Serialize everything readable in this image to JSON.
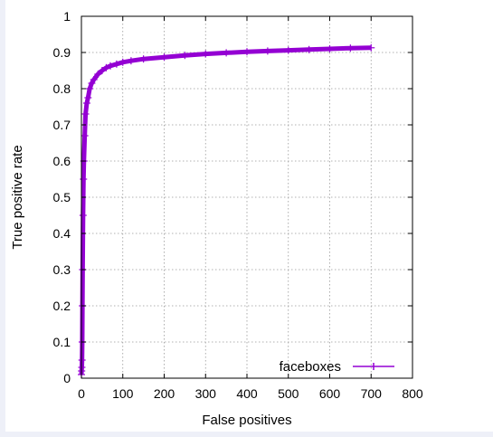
{
  "chart_data": {
    "type": "line",
    "xlabel": "False positives",
    "ylabel": "True positive rate",
    "xlim": [
      0,
      800
    ],
    "ylim": [
      0,
      1
    ],
    "x_ticks": [
      "0",
      "100",
      "200",
      "300",
      "400",
      "500",
      "600",
      "700",
      "800"
    ],
    "y_ticks": [
      "0",
      "0.1",
      "0.2",
      "0.3",
      "0.4",
      "0.5",
      "0.6",
      "0.7",
      "0.8",
      "0.9",
      "1"
    ],
    "grid": true,
    "legend_position": "bottom-right",
    "series": [
      {
        "name": "faceboxes",
        "color": "#9400d3",
        "x": [
          0,
          0.5,
          1,
          1.5,
          2,
          2.5,
          3,
          4,
          5,
          6,
          8,
          10,
          13,
          16,
          20,
          25,
          30,
          40,
          50,
          60,
          70,
          85,
          100,
          120,
          150,
          200,
          250,
          300,
          350,
          400,
          450,
          500,
          550,
          600,
          650,
          700
        ],
        "y": [
          0.01,
          0.02,
          0.03,
          0.05,
          0.1,
          0.2,
          0.3,
          0.45,
          0.55,
          0.6,
          0.67,
          0.73,
          0.76,
          0.775,
          0.8,
          0.815,
          0.825,
          0.84,
          0.85,
          0.858,
          0.863,
          0.868,
          0.873,
          0.877,
          0.882,
          0.887,
          0.892,
          0.896,
          0.899,
          0.902,
          0.904,
          0.906,
          0.908,
          0.91,
          0.912,
          0.913
        ]
      }
    ]
  }
}
